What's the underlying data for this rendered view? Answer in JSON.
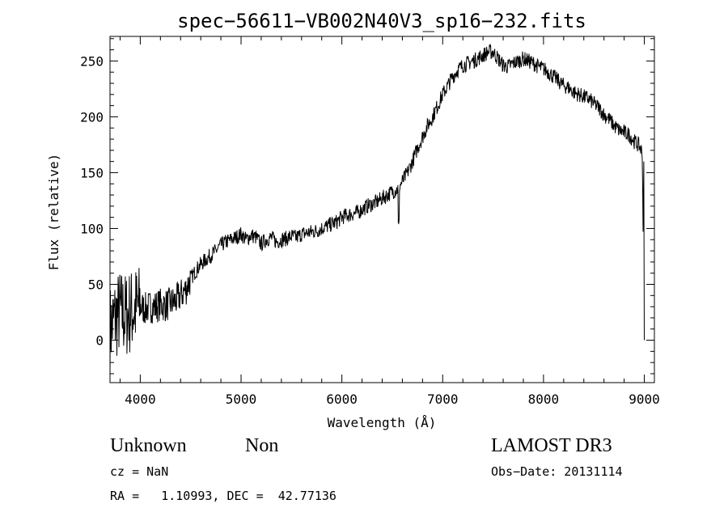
{
  "chart_data": {
    "type": "line",
    "title": "spec−56611−VB002N40V3_sp16−232.fits",
    "xlabel": "Wavelength (Å)",
    "ylabel": "Flux (relative)",
    "xlim": [
      3700,
      9100
    ],
    "ylim": [
      -38,
      272
    ],
    "xticks": [
      4000,
      5000,
      6000,
      7000,
      8000,
      9000
    ],
    "xtick_labels": [
      "4000",
      "5000",
      "6000",
      "7000",
      "8000",
      "9000"
    ],
    "yticks": [
      0,
      50,
      100,
      150,
      200,
      250
    ],
    "ytick_labels": [
      "0",
      "50",
      "100",
      "150",
      "200",
      "250"
    ],
    "grid": false,
    "series": [
      {
        "name": "spectrum",
        "x": [
          3700,
          3750,
          3800,
          3850,
          3900,
          3950,
          4000,
          4050,
          4100,
          4150,
          4200,
          4250,
          4300,
          4350,
          4400,
          4450,
          4500,
          4550,
          4600,
          4650,
          4700,
          4750,
          4800,
          4850,
          4900,
          4950,
          5000,
          5050,
          5100,
          5150,
          5200,
          5250,
          5300,
          5350,
          5400,
          5450,
          5500,
          5550,
          5600,
          5650,
          5700,
          5750,
          5800,
          5850,
          5900,
          5950,
          6000,
          6050,
          6100,
          6150,
          6200,
          6250,
          6300,
          6350,
          6400,
          6450,
          6500,
          6550,
          6600,
          6650,
          6700,
          6750,
          6800,
          6850,
          6900,
          6950,
          7000,
          7050,
          7100,
          7150,
          7200,
          7250,
          7300,
          7350,
          7400,
          7450,
          7500,
          7550,
          7600,
          7650,
          7700,
          7750,
          7800,
          7850,
          7900,
          7950,
          8000,
          8050,
          8100,
          8150,
          8200,
          8250,
          8300,
          8350,
          8400,
          8450,
          8500,
          8550,
          8600,
          8650,
          8700,
          8750,
          8800,
          8850,
          8900,
          8950,
          8980,
          9000
        ],
        "values": [
          10,
          20,
          25,
          22,
          25,
          28,
          30,
          28,
          30,
          30,
          32,
          31,
          33,
          35,
          40,
          45,
          55,
          62,
          68,
          72,
          76,
          80,
          85,
          88,
          90,
          92,
          95,
          90,
          94,
          92,
          86,
          90,
          92,
          88,
          90,
          91,
          93,
          92,
          95,
          96,
          97,
          98,
          100,
          102,
          104,
          106,
          110,
          112,
          113,
          114,
          117,
          120,
          122,
          124,
          127,
          130,
          133,
          135,
          142,
          150,
          160,
          172,
          182,
          192,
          200,
          210,
          220,
          228,
          236,
          242,
          246,
          248,
          250,
          252,
          255,
          258,
          258,
          252,
          246,
          245,
          248,
          250,
          252,
          250,
          248,
          245,
          243,
          240,
          236,
          232,
          228,
          226,
          222,
          220,
          218,
          216,
          212,
          208,
          202,
          198,
          192,
          188,
          186,
          184,
          178,
          174,
          168,
          0
        ]
      }
    ],
    "noise_seed": 7
  },
  "annotations": {
    "classification": "Unknown",
    "subclass": "Non",
    "survey": "LAMOST DR3",
    "cz": "cz = NaN",
    "obs_date": "Obs−Date: 20131114",
    "coords": "RA =   1.10993, DEC =  42.77136"
  }
}
